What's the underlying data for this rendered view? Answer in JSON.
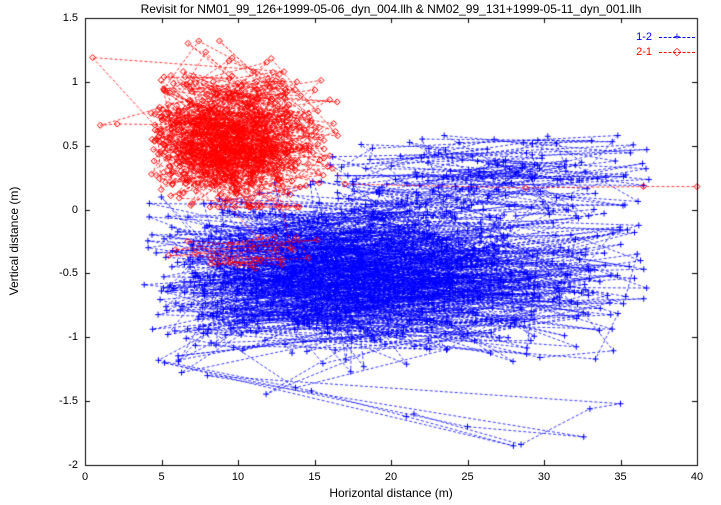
{
  "chart_data": {
    "type": "scatter",
    "title": "Revisit for NM01_99_126+1999-05-06_dyn_004.llh & NM02_99_131+1999-05-11_dyn_001.llh",
    "xlabel": "Horizontal distance (m)",
    "ylabel": "Vertical distance (m)",
    "xlim": [
      0,
      40
    ],
    "ylim": [
      -2,
      1.5
    ],
    "xticks": [
      {
        "v": 0,
        "label": "0"
      },
      {
        "v": 5,
        "label": "5"
      },
      {
        "v": 10,
        "label": "10"
      },
      {
        "v": 15,
        "label": "15"
      },
      {
        "v": 20,
        "label": "20"
      },
      {
        "v": 25,
        "label": "25"
      },
      {
        "v": 30,
        "label": "30"
      },
      {
        "v": 35,
        "label": "35"
      },
      {
        "v": 40,
        "label": "40"
      }
    ],
    "yticks": [
      {
        "v": -2,
        "label": "-2"
      },
      {
        "v": -1.5,
        "label": "-1.5"
      },
      {
        "v": -1,
        "label": "-1"
      },
      {
        "v": -0.5,
        "label": "-0.5"
      },
      {
        "v": 0,
        "label": "0"
      },
      {
        "v": 0.5,
        "label": "0.5"
      },
      {
        "v": 1,
        "label": "1"
      },
      {
        "v": 1.5,
        "label": "1.5"
      }
    ],
    "grid": false,
    "legend_position": "top-right",
    "axis_color": "#000000",
    "series": [
      {
        "name": "1-2",
        "color": "#0000ff",
        "marker": "plus",
        "line_style": "dashed",
        "seed": 42,
        "clusters": [
          {
            "n": 1050,
            "x_mean": 17.5,
            "x_sd": 8.5,
            "x_min": 3.8,
            "x_max": 36.8,
            "y_mean": -0.5,
            "y_sd": 0.33,
            "y_min": -1.52,
            "y_max": 0.22
          },
          {
            "n": 160,
            "x_mean": 26.0,
            "x_sd": 7.0,
            "x_min": 16.0,
            "x_max": 37.0,
            "y_mean": 0.25,
            "y_sd": 0.18,
            "y_min": -0.05,
            "y_max": 0.58
          }
        ],
        "outliers": [
          [
            4.8,
            -1.18
          ],
          [
            14.8,
            -1.42
          ],
          [
            21.0,
            -1.62
          ],
          [
            28.0,
            -1.85
          ],
          [
            5.2,
            -1.2
          ],
          [
            25.0,
            -1.7
          ],
          [
            32.6,
            -1.78
          ],
          [
            8.0,
            -1.3
          ],
          [
            35.0,
            -1.52
          ],
          [
            33.0,
            -1.56
          ],
          [
            28.5,
            -1.84
          ],
          [
            21.5,
            -1.6
          ]
        ]
      },
      {
        "name": "2-1",
        "color": "#ff0000",
        "marker": "diamond",
        "line_style": "dashed",
        "seed": 7,
        "clusters": [
          {
            "n": 700,
            "x_mean": 9.5,
            "x_sd": 3.2,
            "x_min": 4.2,
            "x_max": 16.6,
            "y_mean": 0.55,
            "y_sd": 0.27,
            "y_min": 0.02,
            "y_max": 1.32
          },
          {
            "n": 25,
            "x_mean": 10.0,
            "x_sd": 3.5,
            "x_min": 4.5,
            "x_max": 15.5,
            "y_mean": -0.35,
            "y_sd": 0.1,
            "y_min": -0.5,
            "y_max": -0.15
          }
        ],
        "outliers": [
          [
            0.5,
            1.19
          ],
          [
            13.0,
            1.08
          ],
          [
            1.0,
            0.66
          ],
          [
            2.1,
            0.67
          ],
          [
            14.0,
            0.65
          ],
          [
            17.0,
            0.2
          ],
          [
            28.8,
            0.17
          ],
          [
            36.5,
            0.18
          ],
          [
            40.0,
            0.18
          ]
        ]
      }
    ]
  }
}
